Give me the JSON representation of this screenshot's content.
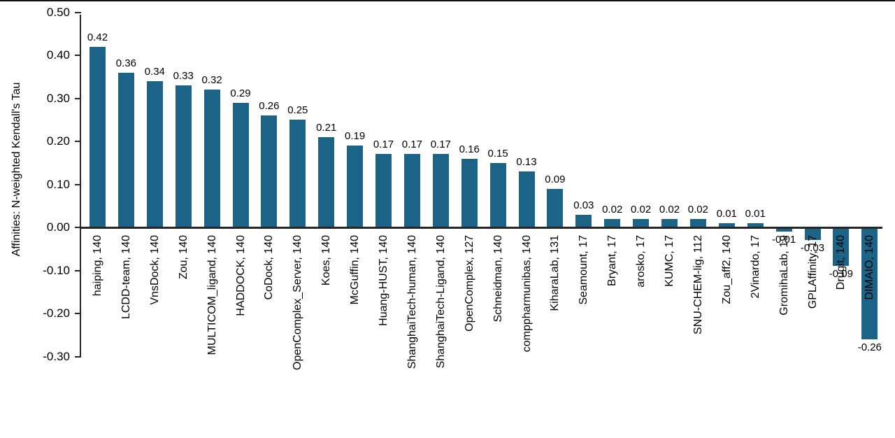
{
  "chart_data": {
    "type": "bar",
    "title": "",
    "xlabel": "",
    "ylabel": "Affinities: N-weighted Kendall's Tau",
    "ylim": [
      -0.3,
      0.5
    ],
    "ytick_step": 0.1,
    "ytick_labels": [
      "0.50",
      "0.40",
      "0.30",
      "0.20",
      "0.10",
      "0.00",
      "-0.10",
      "-0.20",
      "-0.30"
    ],
    "grid": false,
    "legend": false,
    "bar_color": "#1B6488",
    "axis_color": "#262626",
    "categories": [
      "haiping, 140",
      "LCDD-team, 140",
      "VnsDock, 140",
      "Zou, 140",
      "MULTICOM_ligand, 140",
      "HADDOCK, 140",
      "CoDock, 140",
      "OpenComplex_Server, 140",
      "Koes, 140",
      "McGuffin, 140",
      "Huang-HUST, 140",
      "ShanghaiTech-human, 140",
      "ShanghaiTech-Ligand, 140",
      "OpenComplex, 127",
      "Schneidman, 140",
      "comppharmunibas, 140",
      "KiharaLab, 131",
      "Seamount, 17",
      "Bryant, 17",
      "arosko, 17",
      "KUMC, 17",
      "SNU-CHEM-lig, 112",
      "Zou_aff2, 140",
      "2Vinardo, 17",
      "GromihaLab, 19",
      "GPLAffinity, 17",
      "Drugit, 140",
      "DIMAIO, 140"
    ],
    "values": [
      0.42,
      0.36,
      0.34,
      0.33,
      0.32,
      0.29,
      0.26,
      0.25,
      0.21,
      0.19,
      0.17,
      0.17,
      0.17,
      0.16,
      0.15,
      0.13,
      0.09,
      0.03,
      0.02,
      0.02,
      0.02,
      0.02,
      0.01,
      0.01,
      -0.01,
      -0.03,
      -0.09,
      -0.26
    ],
    "value_labels": [
      "0.42",
      "0.36",
      "0.34",
      "0.33",
      "0.32",
      "0.29",
      "0.26",
      "0.25",
      "0.21",
      "0.19",
      "0.17",
      "0.17",
      "0.17",
      "0.16",
      "0.15",
      "0.13",
      "0.09",
      "0.03",
      "0.02",
      "0.02",
      "0.02",
      "0.02",
      "0.01",
      "0.01",
      "-0.01",
      "-0.03",
      "-0.09",
      "-0.26"
    ]
  }
}
